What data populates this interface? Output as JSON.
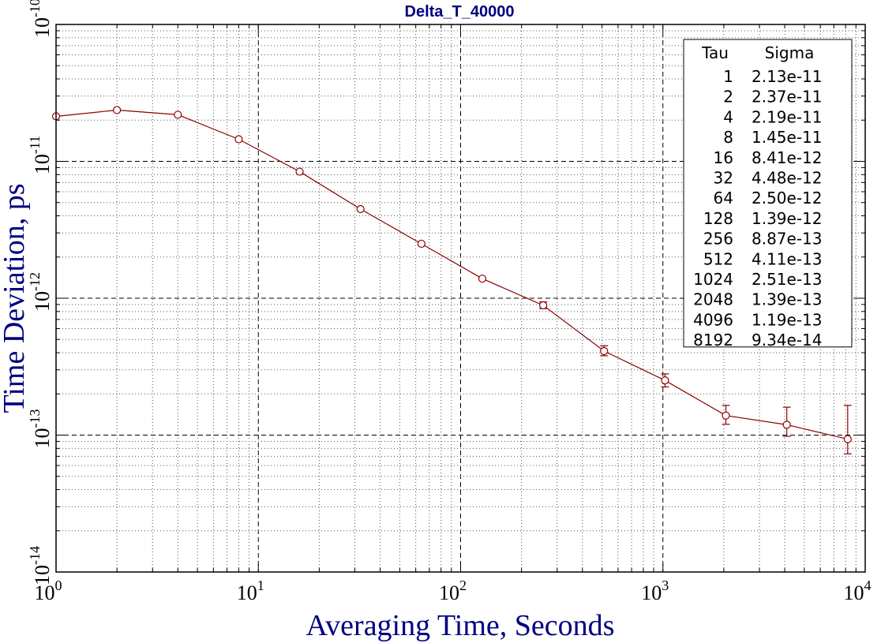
{
  "chart_data": {
    "type": "line",
    "title": "Delta_T_40000",
    "xlabel": "Averaging Time, Seconds",
    "ylabel": "Time Deviation, ps",
    "xscale": "log",
    "yscale": "log",
    "xlim": [
      1,
      10000
    ],
    "ylim": [
      1e-14,
      1e-10
    ],
    "grid": true,
    "legend_position": "top-right",
    "x_ticks": [
      {
        "base": "10",
        "exp": "0"
      },
      {
        "base": "10",
        "exp": "1"
      },
      {
        "base": "10",
        "exp": "2"
      },
      {
        "base": "10",
        "exp": "3"
      },
      {
        "base": "10",
        "exp": "4"
      }
    ],
    "y_ticks": [
      {
        "base": "10",
        "exp": "-14"
      },
      {
        "base": "10",
        "exp": "-13"
      },
      {
        "base": "10",
        "exp": "-12"
      },
      {
        "base": "10",
        "exp": "-11"
      },
      {
        "base": "10",
        "exp": "-10"
      }
    ],
    "series": [
      {
        "x": [
          1,
          2,
          4,
          8,
          16,
          32,
          64,
          128,
          256,
          512,
          1024,
          2048,
          4096,
          8192
        ],
        "y": [
          2.13e-11,
          2.37e-11,
          2.19e-11,
          1.45e-11,
          8.41e-12,
          4.48e-12,
          2.5e-12,
          1.39e-12,
          8.87e-13,
          4.11e-13,
          2.51e-13,
          1.39e-13,
          1.19e-13,
          9.34e-14
        ],
        "error_low": [
          0,
          0,
          0,
          0,
          0,
          0,
          0,
          0,
          8.4e-13,
          3.8e-13,
          2.25e-13,
          1.2e-13,
          9.8e-14,
          7.3e-14
        ],
        "error_high": [
          0,
          0,
          0,
          0,
          0,
          0,
          0,
          0,
          9.4e-13,
          4.5e-13,
          2.8e-13,
          1.65e-13,
          1.6e-13,
          1.65e-13
        ],
        "color": "#8b0000"
      }
    ],
    "table": {
      "headers": [
        "Tau",
        "Sigma"
      ],
      "rows": [
        [
          "1",
          "2.13e-11"
        ],
        [
          "2",
          "2.37e-11"
        ],
        [
          "4",
          "2.19e-11"
        ],
        [
          "8",
          "1.45e-11"
        ],
        [
          "16",
          "8.41e-12"
        ],
        [
          "32",
          "4.48e-12"
        ],
        [
          "64",
          "2.50e-12"
        ],
        [
          "128",
          "1.39e-12"
        ],
        [
          "256",
          "8.87e-13"
        ],
        [
          "512",
          "4.11e-13"
        ],
        [
          "1024",
          "2.51e-13"
        ],
        [
          "2048",
          "1.39e-13"
        ],
        [
          "4096",
          "1.19e-13"
        ],
        [
          "8192",
          "9.34e-14"
        ]
      ]
    },
    "colors": {
      "title": "#000080",
      "labels": "#000080",
      "series": "#8b0000",
      "axes": "#000000"
    }
  }
}
